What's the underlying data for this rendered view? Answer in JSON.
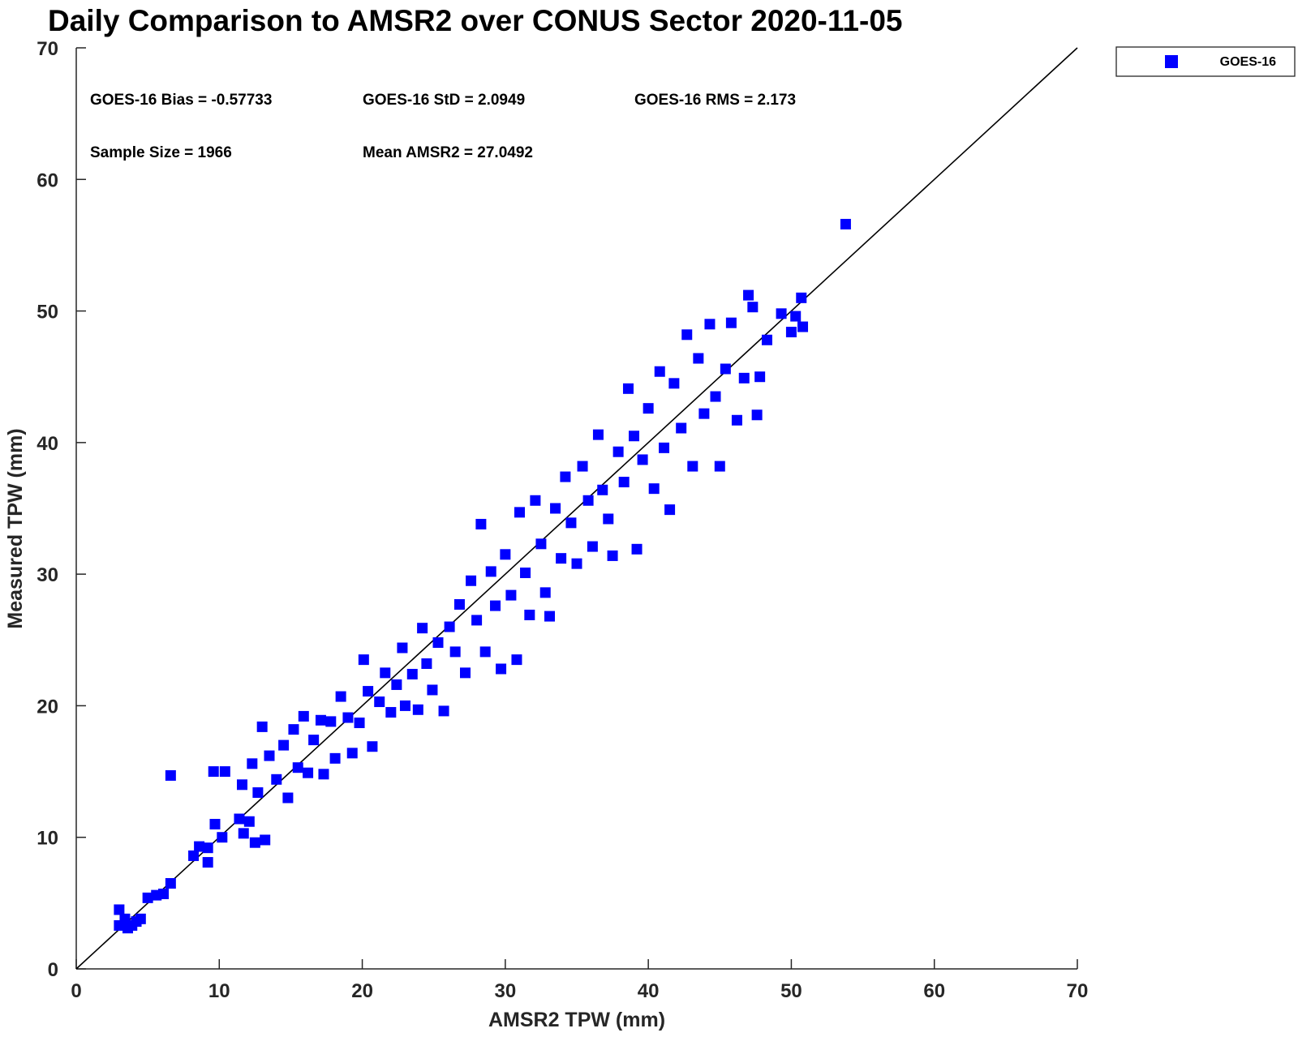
{
  "colors": {
    "marker": "#0000ff",
    "axis": "#262626",
    "identity_line": "#000000",
    "background": "#ffffff"
  },
  "stats": {
    "bias": "GOES-16 Bias = -0.57733",
    "std": "GOES-16 StD = 2.0949",
    "rms": "GOES-16 RMS = 2.173",
    "sample_size": "Sample Size = 1966",
    "mean": "Mean AMSR2 = 27.0492"
  },
  "chart_data": {
    "type": "scatter",
    "title": "Daily Comparison to AMSR2 over CONUS Sector 2020-11-05",
    "xlabel": "AMSR2 TPW (mm)",
    "ylabel": "Measured TPW (mm)",
    "xlim": [
      0,
      70
    ],
    "ylim": [
      0,
      70
    ],
    "xticks": [
      "0",
      "10",
      "20",
      "30",
      "40",
      "50",
      "60",
      "70"
    ],
    "yticks": [
      "0",
      "10",
      "20",
      "30",
      "40",
      "50",
      "60",
      "70"
    ],
    "grid": false,
    "legend_position": "outside top-right",
    "reference_line": {
      "x": [
        0,
        70
      ],
      "y": [
        0,
        70
      ]
    },
    "series": [
      {
        "name": "GOES-16",
        "marker": "square",
        "color": "#0000ff",
        "points": [
          [
            3.0,
            4.5
          ],
          [
            3.0,
            3.3
          ],
          [
            3.4,
            3.8
          ],
          [
            3.6,
            3.1
          ],
          [
            3.9,
            3.3
          ],
          [
            4.2,
            3.6
          ],
          [
            4.5,
            3.8
          ],
          [
            5.0,
            5.4
          ],
          [
            5.6,
            5.6
          ],
          [
            6.1,
            5.7
          ],
          [
            6.6,
            6.5
          ],
          [
            6.6,
            14.7
          ],
          [
            8.2,
            8.6
          ],
          [
            8.6,
            9.3
          ],
          [
            9.2,
            8.1
          ],
          [
            9.2,
            9.2
          ],
          [
            9.6,
            15.0
          ],
          [
            9.7,
            11.0
          ],
          [
            10.2,
            10.0
          ],
          [
            10.4,
            15.0
          ],
          [
            11.4,
            11.4
          ],
          [
            11.6,
            14.0
          ],
          [
            11.7,
            10.3
          ],
          [
            12.1,
            11.2
          ],
          [
            12.3,
            15.6
          ],
          [
            12.5,
            9.6
          ],
          [
            12.7,
            13.4
          ],
          [
            13.0,
            18.4
          ],
          [
            13.2,
            9.8
          ],
          [
            13.5,
            16.2
          ],
          [
            14.0,
            14.4
          ],
          [
            14.5,
            17.0
          ],
          [
            14.8,
            13.0
          ],
          [
            15.2,
            18.2
          ],
          [
            15.5,
            15.3
          ],
          [
            15.9,
            19.2
          ],
          [
            16.2,
            14.9
          ],
          [
            16.6,
            17.4
          ],
          [
            17.1,
            18.9
          ],
          [
            17.3,
            14.8
          ],
          [
            17.8,
            18.8
          ],
          [
            18.1,
            16.0
          ],
          [
            18.5,
            20.7
          ],
          [
            19.0,
            19.1
          ],
          [
            19.3,
            16.4
          ],
          [
            19.8,
            18.7
          ],
          [
            20.1,
            23.5
          ],
          [
            20.4,
            21.1
          ],
          [
            20.7,
            16.9
          ],
          [
            21.2,
            20.3
          ],
          [
            21.6,
            22.5
          ],
          [
            22.0,
            19.5
          ],
          [
            22.4,
            21.6
          ],
          [
            22.8,
            24.4
          ],
          [
            23.0,
            20.0
          ],
          [
            23.5,
            22.4
          ],
          [
            23.9,
            19.7
          ],
          [
            24.2,
            25.9
          ],
          [
            24.5,
            23.2
          ],
          [
            24.9,
            21.2
          ],
          [
            25.3,
            24.8
          ],
          [
            25.7,
            19.6
          ],
          [
            26.1,
            26.0
          ],
          [
            26.5,
            24.1
          ],
          [
            26.8,
            27.7
          ],
          [
            27.2,
            22.5
          ],
          [
            27.6,
            29.5
          ],
          [
            28.0,
            26.5
          ],
          [
            28.3,
            33.8
          ],
          [
            28.6,
            24.1
          ],
          [
            29.0,
            30.2
          ],
          [
            29.3,
            27.6
          ],
          [
            29.7,
            22.8
          ],
          [
            30.0,
            31.5
          ],
          [
            30.4,
            28.4
          ],
          [
            30.8,
            23.5
          ],
          [
            31.0,
            34.7
          ],
          [
            31.4,
            30.1
          ],
          [
            31.7,
            26.9
          ],
          [
            32.1,
            35.6
          ],
          [
            32.5,
            32.3
          ],
          [
            32.8,
            28.6
          ],
          [
            33.1,
            26.8
          ],
          [
            33.5,
            35.0
          ],
          [
            33.9,
            31.2
          ],
          [
            34.2,
            37.4
          ],
          [
            34.6,
            33.9
          ],
          [
            35.0,
            30.8
          ],
          [
            35.4,
            38.2
          ],
          [
            35.8,
            35.6
          ],
          [
            36.1,
            32.1
          ],
          [
            36.5,
            40.6
          ],
          [
            36.8,
            36.4
          ],
          [
            37.2,
            34.2
          ],
          [
            37.5,
            31.4
          ],
          [
            37.9,
            39.3
          ],
          [
            38.3,
            37.0
          ],
          [
            38.6,
            44.1
          ],
          [
            39.0,
            40.5
          ],
          [
            39.2,
            31.9
          ],
          [
            39.6,
            38.7
          ],
          [
            40.0,
            42.6
          ],
          [
            40.4,
            36.5
          ],
          [
            40.8,
            45.4
          ],
          [
            41.1,
            39.6
          ],
          [
            41.5,
            34.9
          ],
          [
            41.8,
            44.5
          ],
          [
            42.3,
            41.1
          ],
          [
            42.7,
            48.2
          ],
          [
            43.1,
            38.2
          ],
          [
            43.5,
            46.4
          ],
          [
            43.9,
            42.2
          ],
          [
            44.3,
            49.0
          ],
          [
            44.7,
            43.5
          ],
          [
            45.0,
            38.2
          ],
          [
            45.4,
            45.6
          ],
          [
            45.8,
            49.1
          ],
          [
            46.2,
            41.7
          ],
          [
            46.7,
            44.9
          ],
          [
            47.0,
            51.2
          ],
          [
            47.3,
            50.3
          ],
          [
            47.6,
            42.1
          ],
          [
            47.8,
            45.0
          ],
          [
            48.3,
            47.8
          ],
          [
            49.3,
            49.8
          ],
          [
            50.0,
            48.4
          ],
          [
            50.3,
            49.6
          ],
          [
            50.7,
            51.0
          ],
          [
            50.8,
            48.8
          ],
          [
            53.8,
            56.6
          ]
        ]
      }
    ]
  }
}
